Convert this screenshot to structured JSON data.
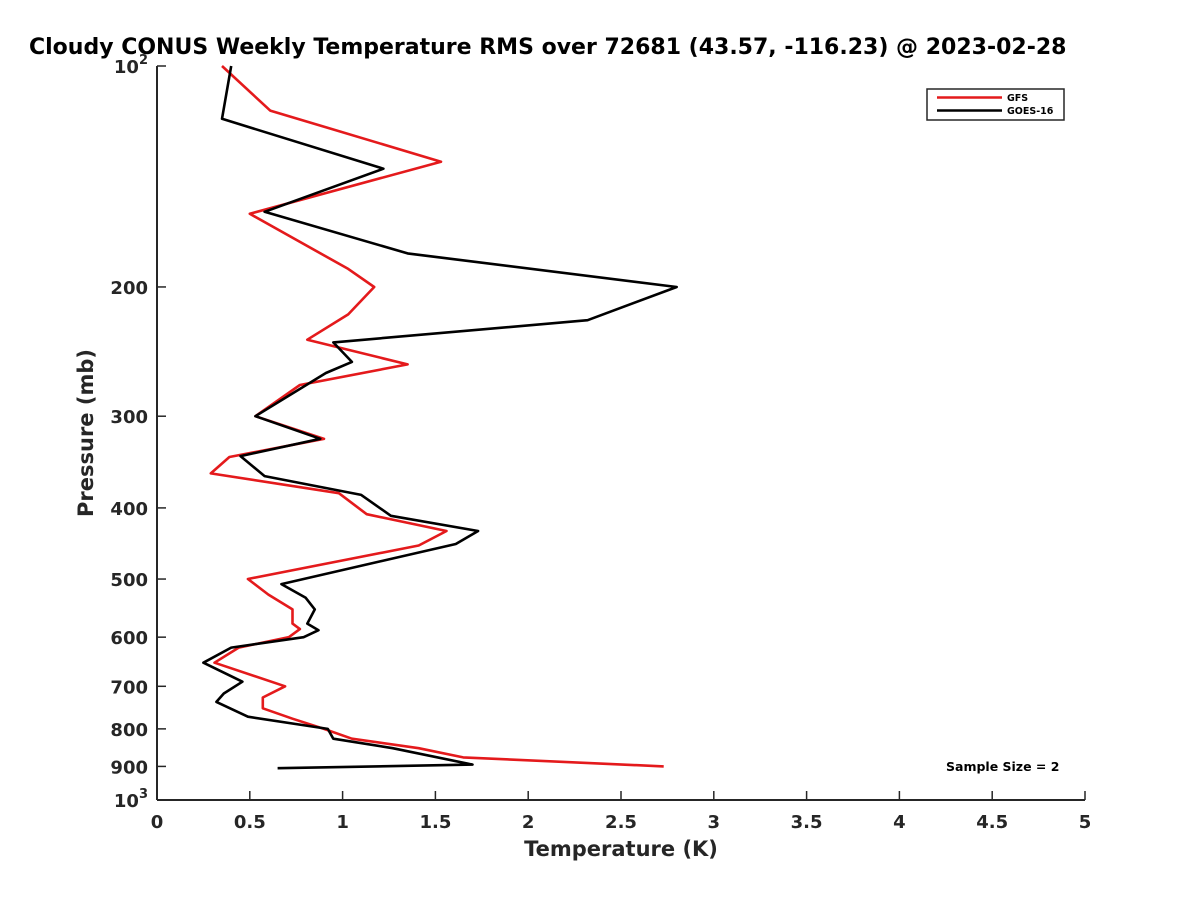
{
  "chart_data": {
    "type": "line",
    "title": "Cloudy CONUS Weekly Temperature RMS over 72681 (43.57, -116.23) @ 2023-02-28",
    "xlabel": "Temperature (K)",
    "ylabel": "Pressure (mb)",
    "xlim": [
      0,
      5
    ],
    "ylim": [
      100,
      1000
    ],
    "yscale": "log",
    "y_reversed": true,
    "grid": false,
    "legend_position": "top-right",
    "x_ticks": [
      "0",
      "0.5",
      "1",
      "1.5",
      "2",
      "2.5",
      "3",
      "3.5",
      "4",
      "4.5",
      "5"
    ],
    "x_tick_values": [
      0,
      0.5,
      1,
      1.5,
      2,
      2.5,
      3,
      3.5,
      4,
      4.5,
      5
    ],
    "y_tick_values": [
      100,
      200,
      300,
      400,
      500,
      600,
      700,
      800,
      900,
      1000
    ],
    "y_ticks": [
      {
        "base": "10",
        "exp": "2"
      },
      "200",
      "300",
      "400",
      "500",
      "600",
      "700",
      "800",
      "900",
      {
        "base": "10",
        "exp": "3"
      }
    ],
    "series": [
      {
        "name": "GFS",
        "color": "#e41a1c",
        "points": [
          [
            0.35,
            100
          ],
          [
            0.61,
            115
          ],
          [
            1.53,
            135
          ],
          [
            0.5,
            159
          ],
          [
            1.03,
            189
          ],
          [
            1.17,
            200
          ],
          [
            1.03,
            218
          ],
          [
            0.81,
            236
          ],
          [
            1.35,
            255
          ],
          [
            0.77,
            272
          ],
          [
            0.53,
            300
          ],
          [
            0.9,
            322
          ],
          [
            0.39,
            341
          ],
          [
            0.29,
            359
          ],
          [
            0.98,
            382
          ],
          [
            1.13,
            408
          ],
          [
            1.56,
            430
          ],
          [
            1.41,
            450
          ],
          [
            0.49,
            500
          ],
          [
            0.6,
            525
          ],
          [
            0.73,
            550
          ],
          [
            0.73,
            575
          ],
          [
            0.77,
            585
          ],
          [
            0.71,
            600
          ],
          [
            0.44,
            620
          ],
          [
            0.31,
            650
          ],
          [
            0.69,
            700
          ],
          [
            0.57,
            725
          ],
          [
            0.57,
            750
          ],
          [
            0.73,
            775
          ],
          [
            0.9,
            800
          ],
          [
            1.05,
            825
          ],
          [
            1.41,
            850
          ],
          [
            1.65,
            875
          ],
          [
            2.73,
            900
          ]
        ]
      },
      {
        "name": "GOES-16",
        "color": "#000000",
        "points": [
          [
            0.4,
            100
          ],
          [
            0.35,
            118
          ],
          [
            1.22,
            138
          ],
          [
            0.58,
            158
          ],
          [
            1.35,
            180
          ],
          [
            2.8,
            200
          ],
          [
            2.32,
            222
          ],
          [
            0.95,
            238
          ],
          [
            1.05,
            253
          ],
          [
            0.91,
            262
          ],
          [
            0.53,
            300
          ],
          [
            0.88,
            322
          ],
          [
            0.45,
            340
          ],
          [
            0.58,
            362
          ],
          [
            1.1,
            384
          ],
          [
            1.26,
            410
          ],
          [
            1.73,
            430
          ],
          [
            1.61,
            448
          ],
          [
            0.67,
            508
          ],
          [
            0.8,
            530
          ],
          [
            0.85,
            550
          ],
          [
            0.81,
            575
          ],
          [
            0.87,
            587
          ],
          [
            0.79,
            600
          ],
          [
            0.4,
            620
          ],
          [
            0.25,
            650
          ],
          [
            0.46,
            690
          ],
          [
            0.36,
            716
          ],
          [
            0.32,
            735
          ],
          [
            0.49,
            770
          ],
          [
            0.92,
            800
          ],
          [
            0.95,
            825
          ],
          [
            1.27,
            850
          ],
          [
            1.7,
            895
          ],
          [
            0.65,
            905
          ]
        ]
      }
    ],
    "annotations": [
      "Sample Size = 2"
    ]
  }
}
